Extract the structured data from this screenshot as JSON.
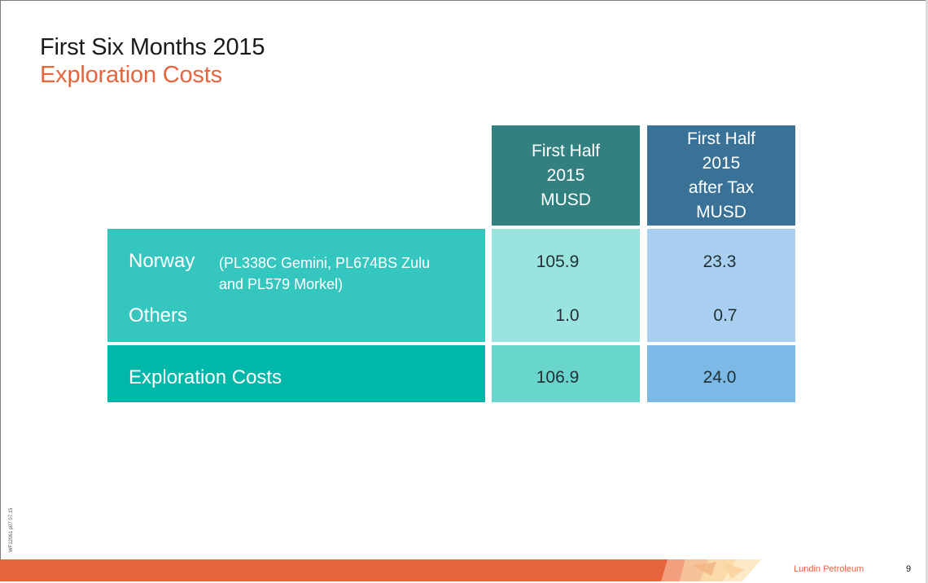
{
  "slide": {
    "title": "First Six Months 2015",
    "subtitle": "Exploration Costs"
  },
  "table": {
    "headers": [
      {
        "lines": [
          "First Half",
          "2015",
          "MUSD"
        ]
      },
      {
        "lines": [
          "First Half",
          "2015",
          "after Tax",
          "MUSD"
        ]
      }
    ],
    "rows": [
      {
        "label": "Norway",
        "note_line1": "(PL338C Gemini, PL674BS Zulu",
        "note_line2": "and PL579 Morkel)",
        "values": [
          "105.9",
          "23.3"
        ]
      },
      {
        "label": "Others",
        "values": [
          "1.0",
          "0.7"
        ]
      }
    ],
    "total": {
      "label": "Exploration Costs",
      "values": [
        "106.9",
        "24.0"
      ]
    }
  },
  "footer": {
    "brand": "Lundin Petroleum",
    "page": "9",
    "docref": "WF12061 p07 07.15"
  },
  "colors": {
    "accent_orange": "#e8643c",
    "header_teal": "#338080",
    "header_blue": "#3a7196",
    "label_teal": "#35c7bf",
    "total_teal": "#00b8aa"
  }
}
